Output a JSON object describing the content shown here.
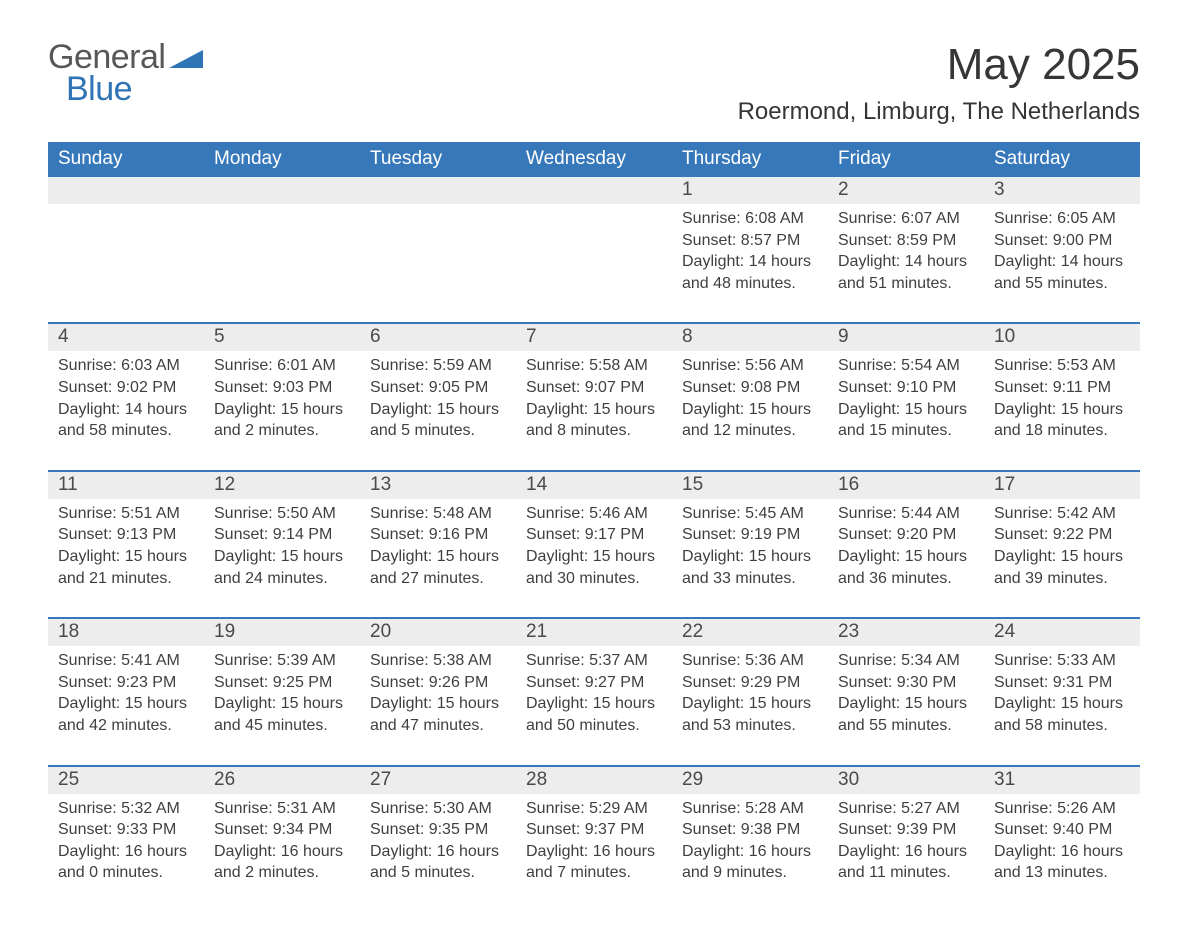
{
  "logo": {
    "left": "General",
    "right": "Blue"
  },
  "title": "May 2025",
  "location": "Roermond, Limburg, The Netherlands",
  "colors": {
    "header_bg": "#3778bb",
    "header_text": "#ffffff",
    "daynum_bg": "#ededed",
    "text": "#3f3f3f",
    "accent_blue": "#2f74b5",
    "page_bg": "#ffffff"
  },
  "day_names": [
    "Sunday",
    "Monday",
    "Tuesday",
    "Wednesday",
    "Thursday",
    "Friday",
    "Saturday"
  ],
  "weeks": [
    [
      null,
      null,
      null,
      null,
      {
        "n": "1",
        "sunrise": "Sunrise: 6:08 AM",
        "sunset": "Sunset: 8:57 PM",
        "day1": "Daylight: 14 hours",
        "day2": "and 48 minutes."
      },
      {
        "n": "2",
        "sunrise": "Sunrise: 6:07 AM",
        "sunset": "Sunset: 8:59 PM",
        "day1": "Daylight: 14 hours",
        "day2": "and 51 minutes."
      },
      {
        "n": "3",
        "sunrise": "Sunrise: 6:05 AM",
        "sunset": "Sunset: 9:00 PM",
        "day1": "Daylight: 14 hours",
        "day2": "and 55 minutes."
      }
    ],
    [
      {
        "n": "4",
        "sunrise": "Sunrise: 6:03 AM",
        "sunset": "Sunset: 9:02 PM",
        "day1": "Daylight: 14 hours",
        "day2": "and 58 minutes."
      },
      {
        "n": "5",
        "sunrise": "Sunrise: 6:01 AM",
        "sunset": "Sunset: 9:03 PM",
        "day1": "Daylight: 15 hours",
        "day2": "and 2 minutes."
      },
      {
        "n": "6",
        "sunrise": "Sunrise: 5:59 AM",
        "sunset": "Sunset: 9:05 PM",
        "day1": "Daylight: 15 hours",
        "day2": "and 5 minutes."
      },
      {
        "n": "7",
        "sunrise": "Sunrise: 5:58 AM",
        "sunset": "Sunset: 9:07 PM",
        "day1": "Daylight: 15 hours",
        "day2": "and 8 minutes."
      },
      {
        "n": "8",
        "sunrise": "Sunrise: 5:56 AM",
        "sunset": "Sunset: 9:08 PM",
        "day1": "Daylight: 15 hours",
        "day2": "and 12 minutes."
      },
      {
        "n": "9",
        "sunrise": "Sunrise: 5:54 AM",
        "sunset": "Sunset: 9:10 PM",
        "day1": "Daylight: 15 hours",
        "day2": "and 15 minutes."
      },
      {
        "n": "10",
        "sunrise": "Sunrise: 5:53 AM",
        "sunset": "Sunset: 9:11 PM",
        "day1": "Daylight: 15 hours",
        "day2": "and 18 minutes."
      }
    ],
    [
      {
        "n": "11",
        "sunrise": "Sunrise: 5:51 AM",
        "sunset": "Sunset: 9:13 PM",
        "day1": "Daylight: 15 hours",
        "day2": "and 21 minutes."
      },
      {
        "n": "12",
        "sunrise": "Sunrise: 5:50 AM",
        "sunset": "Sunset: 9:14 PM",
        "day1": "Daylight: 15 hours",
        "day2": "and 24 minutes."
      },
      {
        "n": "13",
        "sunrise": "Sunrise: 5:48 AM",
        "sunset": "Sunset: 9:16 PM",
        "day1": "Daylight: 15 hours",
        "day2": "and 27 minutes."
      },
      {
        "n": "14",
        "sunrise": "Sunrise: 5:46 AM",
        "sunset": "Sunset: 9:17 PM",
        "day1": "Daylight: 15 hours",
        "day2": "and 30 minutes."
      },
      {
        "n": "15",
        "sunrise": "Sunrise: 5:45 AM",
        "sunset": "Sunset: 9:19 PM",
        "day1": "Daylight: 15 hours",
        "day2": "and 33 minutes."
      },
      {
        "n": "16",
        "sunrise": "Sunrise: 5:44 AM",
        "sunset": "Sunset: 9:20 PM",
        "day1": "Daylight: 15 hours",
        "day2": "and 36 minutes."
      },
      {
        "n": "17",
        "sunrise": "Sunrise: 5:42 AM",
        "sunset": "Sunset: 9:22 PM",
        "day1": "Daylight: 15 hours",
        "day2": "and 39 minutes."
      }
    ],
    [
      {
        "n": "18",
        "sunrise": "Sunrise: 5:41 AM",
        "sunset": "Sunset: 9:23 PM",
        "day1": "Daylight: 15 hours",
        "day2": "and 42 minutes."
      },
      {
        "n": "19",
        "sunrise": "Sunrise: 5:39 AM",
        "sunset": "Sunset: 9:25 PM",
        "day1": "Daylight: 15 hours",
        "day2": "and 45 minutes."
      },
      {
        "n": "20",
        "sunrise": "Sunrise: 5:38 AM",
        "sunset": "Sunset: 9:26 PM",
        "day1": "Daylight: 15 hours",
        "day2": "and 47 minutes."
      },
      {
        "n": "21",
        "sunrise": "Sunrise: 5:37 AM",
        "sunset": "Sunset: 9:27 PM",
        "day1": "Daylight: 15 hours",
        "day2": "and 50 minutes."
      },
      {
        "n": "22",
        "sunrise": "Sunrise: 5:36 AM",
        "sunset": "Sunset: 9:29 PM",
        "day1": "Daylight: 15 hours",
        "day2": "and 53 minutes."
      },
      {
        "n": "23",
        "sunrise": "Sunrise: 5:34 AM",
        "sunset": "Sunset: 9:30 PM",
        "day1": "Daylight: 15 hours",
        "day2": "and 55 minutes."
      },
      {
        "n": "24",
        "sunrise": "Sunrise: 5:33 AM",
        "sunset": "Sunset: 9:31 PM",
        "day1": "Daylight: 15 hours",
        "day2": "and 58 minutes."
      }
    ],
    [
      {
        "n": "25",
        "sunrise": "Sunrise: 5:32 AM",
        "sunset": "Sunset: 9:33 PM",
        "day1": "Daylight: 16 hours",
        "day2": "and 0 minutes."
      },
      {
        "n": "26",
        "sunrise": "Sunrise: 5:31 AM",
        "sunset": "Sunset: 9:34 PM",
        "day1": "Daylight: 16 hours",
        "day2": "and 2 minutes."
      },
      {
        "n": "27",
        "sunrise": "Sunrise: 5:30 AM",
        "sunset": "Sunset: 9:35 PM",
        "day1": "Daylight: 16 hours",
        "day2": "and 5 minutes."
      },
      {
        "n": "28",
        "sunrise": "Sunrise: 5:29 AM",
        "sunset": "Sunset: 9:37 PM",
        "day1": "Daylight: 16 hours",
        "day2": "and 7 minutes."
      },
      {
        "n": "29",
        "sunrise": "Sunrise: 5:28 AM",
        "sunset": "Sunset: 9:38 PM",
        "day1": "Daylight: 16 hours",
        "day2": "and 9 minutes."
      },
      {
        "n": "30",
        "sunrise": "Sunrise: 5:27 AM",
        "sunset": "Sunset: 9:39 PM",
        "day1": "Daylight: 16 hours",
        "day2": "and 11 minutes."
      },
      {
        "n": "31",
        "sunrise": "Sunrise: 5:26 AM",
        "sunset": "Sunset: 9:40 PM",
        "day1": "Daylight: 16 hours",
        "day2": "and 13 minutes."
      }
    ]
  ]
}
